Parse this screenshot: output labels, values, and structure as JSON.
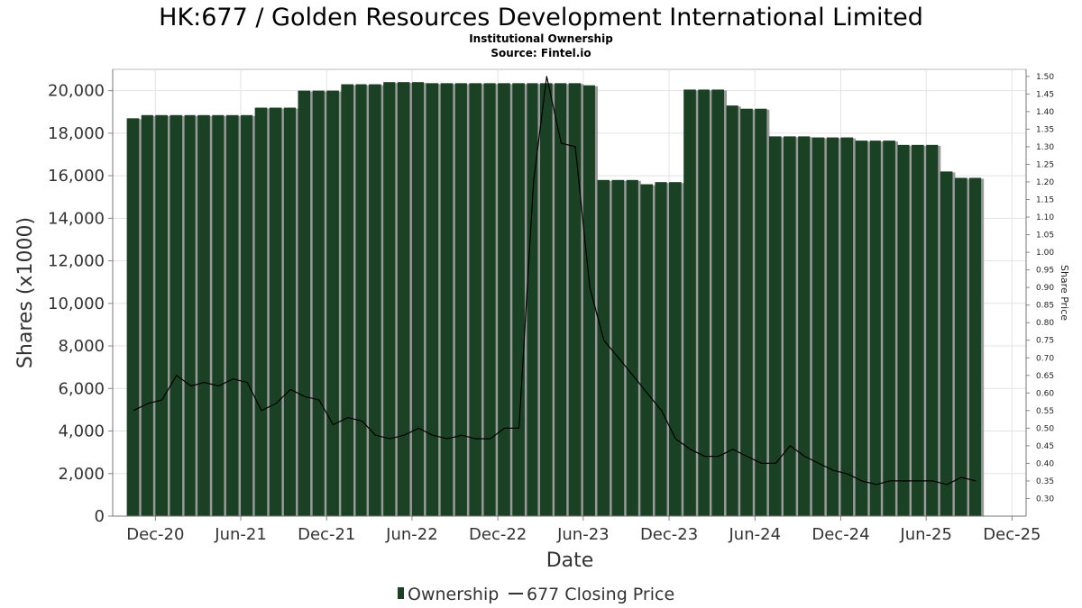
{
  "header": {
    "title": "HK:677 / Golden Resources Development International Limited",
    "subtitle": "Institutional Ownership",
    "source": "Source: Fintel.io"
  },
  "chart_data": {
    "type": "bar",
    "xlabel": "Date",
    "ylabel": "Shares (x1000)",
    "y2label": "Share Price",
    "ylim": [
      0,
      21000
    ],
    "y2lim": [
      0.25,
      1.52
    ],
    "xlim": [
      "2020-09-01",
      "2025-12-31"
    ],
    "grid": true,
    "legend_position": "bottom",
    "yticks": [
      0,
      2000,
      4000,
      6000,
      8000,
      10000,
      12000,
      14000,
      16000,
      18000,
      20000
    ],
    "ytick_labels": [
      "0",
      "2,000",
      "4,000",
      "6,000",
      "8,000",
      "10,000",
      "12,000",
      "14,000",
      "16,000",
      "18,000",
      "20,000"
    ],
    "y2ticks": [
      "0.30",
      "0.35",
      "0.40",
      "0.45",
      "0.50",
      "0.55",
      "0.60",
      "0.65",
      "0.70",
      "0.75",
      "0.80",
      "0.85",
      "0.90",
      "0.95",
      "1.00",
      "1.05",
      "1.10",
      "1.15",
      "1.20",
      "1.25",
      "1.30",
      "1.35",
      "1.40",
      "1.45",
      "1.50"
    ],
    "xticks": [
      {
        "date": "2020-12-01",
        "label": "Dec-20"
      },
      {
        "date": "2021-06-01",
        "label": "Jun-21"
      },
      {
        "date": "2021-12-01",
        "label": "Dec-21"
      },
      {
        "date": "2022-06-01",
        "label": "Jun-22"
      },
      {
        "date": "2022-12-01",
        "label": "Dec-22"
      },
      {
        "date": "2023-06-01",
        "label": "Jun-23"
      },
      {
        "date": "2023-12-01",
        "label": "Dec-23"
      },
      {
        "date": "2024-06-01",
        "label": "Jun-24"
      },
      {
        "date": "2024-12-01",
        "label": "Dec-24"
      },
      {
        "date": "2025-06-01",
        "label": "Jun-25"
      },
      {
        "date": "2025-12-01",
        "label": "Dec-25"
      }
    ],
    "series": [
      {
        "name": "Ownership",
        "type": "bar",
        "color": "#1b4124",
        "dates": [
          "2020-10",
          "2020-11",
          "2020-12",
          "2021-01",
          "2021-02",
          "2021-03",
          "2021-04",
          "2021-05",
          "2021-06",
          "2021-07",
          "2021-08",
          "2021-09",
          "2021-10",
          "2021-11",
          "2021-12",
          "2022-01",
          "2022-02",
          "2022-03",
          "2022-04",
          "2022-05",
          "2022-06",
          "2022-07",
          "2022-08",
          "2022-09",
          "2022-10",
          "2022-11",
          "2022-12",
          "2023-01",
          "2023-02",
          "2023-03",
          "2023-04",
          "2023-05",
          "2023-06",
          "2023-07",
          "2023-08",
          "2023-09",
          "2023-10",
          "2023-11",
          "2023-12",
          "2024-01",
          "2024-02",
          "2024-03",
          "2024-04",
          "2024-05",
          "2024-06",
          "2024-07",
          "2024-08",
          "2024-09",
          "2024-10",
          "2024-11",
          "2024-12",
          "2025-01",
          "2025-02",
          "2025-03",
          "2025-04",
          "2025-05",
          "2025-06",
          "2025-07",
          "2025-08",
          "2025-09"
        ],
        "values": [
          18700,
          18850,
          18850,
          18850,
          18850,
          18850,
          18850,
          18850,
          18850,
          19200,
          19200,
          19200,
          20000,
          20000,
          20000,
          20300,
          20300,
          20300,
          20400,
          20400,
          20400,
          20350,
          20350,
          20350,
          20350,
          20350,
          20350,
          20350,
          20350,
          20350,
          20350,
          20350,
          20250,
          15800,
          15800,
          15800,
          15600,
          15700,
          15700,
          20050,
          20050,
          20050,
          19300,
          19150,
          19150,
          17850,
          17850,
          17850,
          17800,
          17800,
          17800,
          17650,
          17650,
          17650,
          17450,
          17450,
          17450,
          16200,
          15900,
          15900
        ]
      },
      {
        "name": "677 Closing Price",
        "type": "line",
        "color": "#000000",
        "dates": [
          "2020-10-15",
          "2020-11-15",
          "2020-12-15",
          "2021-01-15",
          "2021-02-15",
          "2021-03-15",
          "2021-04-15",
          "2021-05-15",
          "2021-06-15",
          "2021-07-15",
          "2021-08-15",
          "2021-09-15",
          "2021-10-15",
          "2021-11-15",
          "2021-12-15",
          "2022-01-15",
          "2022-02-15",
          "2022-03-15",
          "2022-04-15",
          "2022-05-15",
          "2022-06-15",
          "2022-07-15",
          "2022-08-15",
          "2022-09-15",
          "2022-10-15",
          "2022-11-15",
          "2022-12-15",
          "2023-01-15",
          "2023-02-15",
          "2023-03-15",
          "2023-04-15",
          "2023-05-15",
          "2023-06-15",
          "2023-07-15",
          "2023-08-15",
          "2023-09-15",
          "2023-10-15",
          "2023-11-15",
          "2023-12-15",
          "2024-01-15",
          "2024-02-15",
          "2024-03-15",
          "2024-04-15",
          "2024-05-15",
          "2024-06-15",
          "2024-07-15",
          "2024-08-15",
          "2024-09-15",
          "2024-10-15",
          "2024-11-15",
          "2024-12-15",
          "2025-01-15",
          "2025-02-15",
          "2025-03-15",
          "2025-04-15",
          "2025-05-15",
          "2025-06-15",
          "2025-07-15",
          "2025-08-15",
          "2025-09-15"
        ],
        "values": [
          0.55,
          0.57,
          0.58,
          0.65,
          0.62,
          0.63,
          0.62,
          0.64,
          0.63,
          0.55,
          0.57,
          0.61,
          0.59,
          0.58,
          0.51,
          0.53,
          0.52,
          0.48,
          0.47,
          0.48,
          0.5,
          0.48,
          0.47,
          0.48,
          0.47,
          0.47,
          0.5,
          0.5,
          1.2,
          1.5,
          1.31,
          1.3,
          0.9,
          0.75,
          0.7,
          0.65,
          0.6,
          0.55,
          0.47,
          0.44,
          0.42,
          0.42,
          0.44,
          0.42,
          0.4,
          0.4,
          0.45,
          0.42,
          0.4,
          0.38,
          0.37,
          0.35,
          0.34,
          0.35,
          0.35,
          0.35,
          0.35,
          0.34,
          0.36,
          0.35
        ]
      }
    ]
  }
}
